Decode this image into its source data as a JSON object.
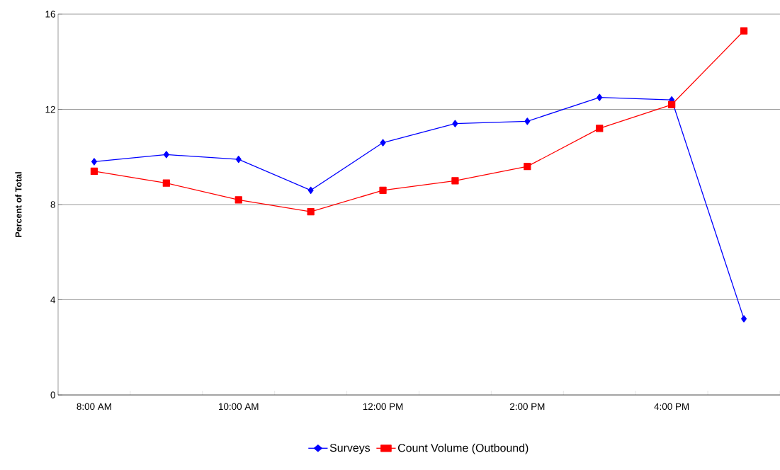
{
  "chart_data": {
    "type": "line",
    "ylabel": "Percent of Total",
    "categories": [
      "8:00 AM",
      null,
      "10:00 AM",
      null,
      "12:00 PM",
      null,
      "2:00 PM",
      null,
      "4:00 PM",
      null
    ],
    "series": [
      {
        "name": "Surveys",
        "color": "#0000ff",
        "marker": "diamond",
        "values": [
          9.8,
          10.1,
          9.9,
          8.6,
          10.6,
          11.4,
          11.5,
          12.5,
          12.4,
          3.2
        ]
      },
      {
        "name": "Count Volume (Outbound)",
        "color": "#ff0000",
        "marker": "square",
        "values": [
          9.4,
          8.9,
          8.2,
          7.7,
          8.6,
          9.0,
          9.6,
          11.2,
          12.2,
          15.3
        ]
      }
    ],
    "ylim": [
      0,
      16
    ],
    "yticks": [
      0,
      4,
      8,
      12,
      16
    ],
    "grid": "y",
    "legend": "bottom"
  }
}
